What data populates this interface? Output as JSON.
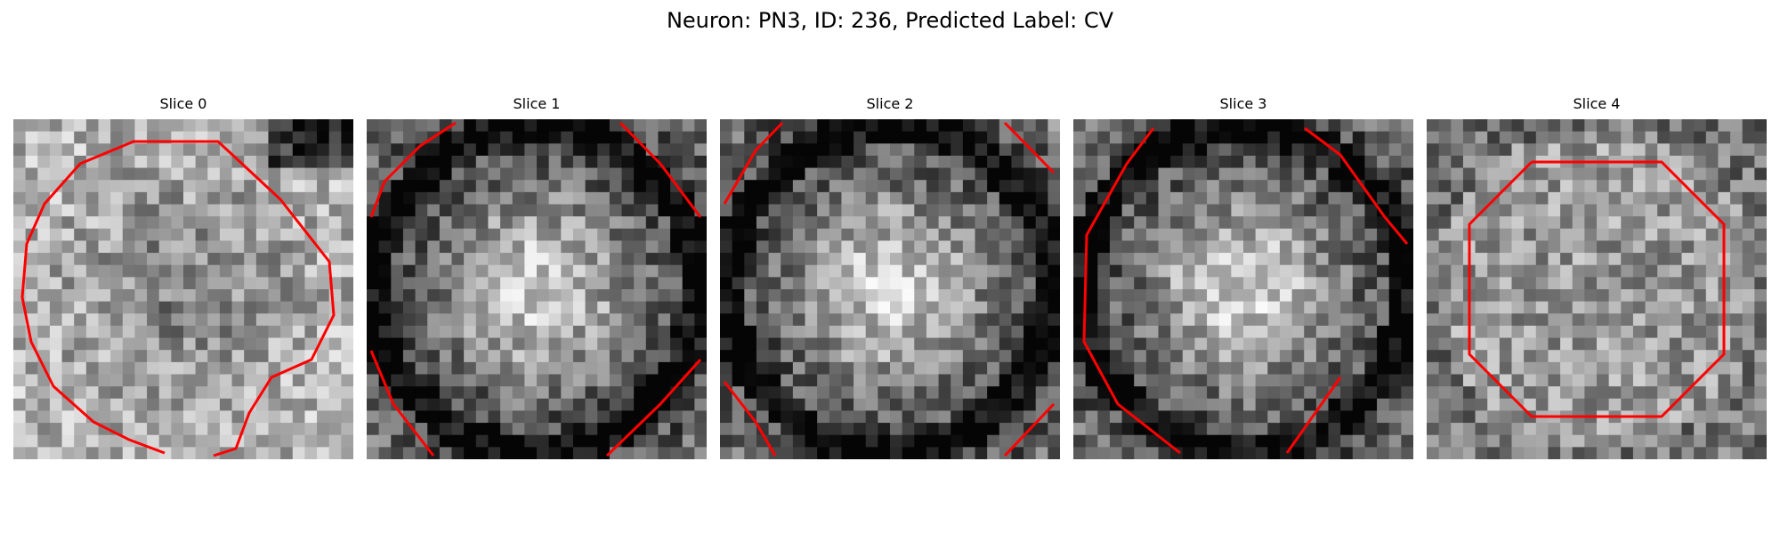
{
  "figure": {
    "title": "Neuron: PN3, ID: 236, Predicted Label: CV",
    "contour_color": "#ff0000",
    "grid_size": 28,
    "panels": [
      {
        "title": "Slice 0",
        "seed": 11,
        "pattern": "blob",
        "contour": "left"
      },
      {
        "title": "Slice 1",
        "seed": 23,
        "pattern": "ring",
        "contour": "corners"
      },
      {
        "title": "Slice 2",
        "seed": 37,
        "pattern": "ring",
        "contour": "corners-tight"
      },
      {
        "title": "Slice 3",
        "seed": 51,
        "pattern": "ring",
        "contour": "octagon-open"
      },
      {
        "title": "Slice 4",
        "seed": 67,
        "pattern": "noise",
        "contour": "octagon"
      }
    ]
  }
}
